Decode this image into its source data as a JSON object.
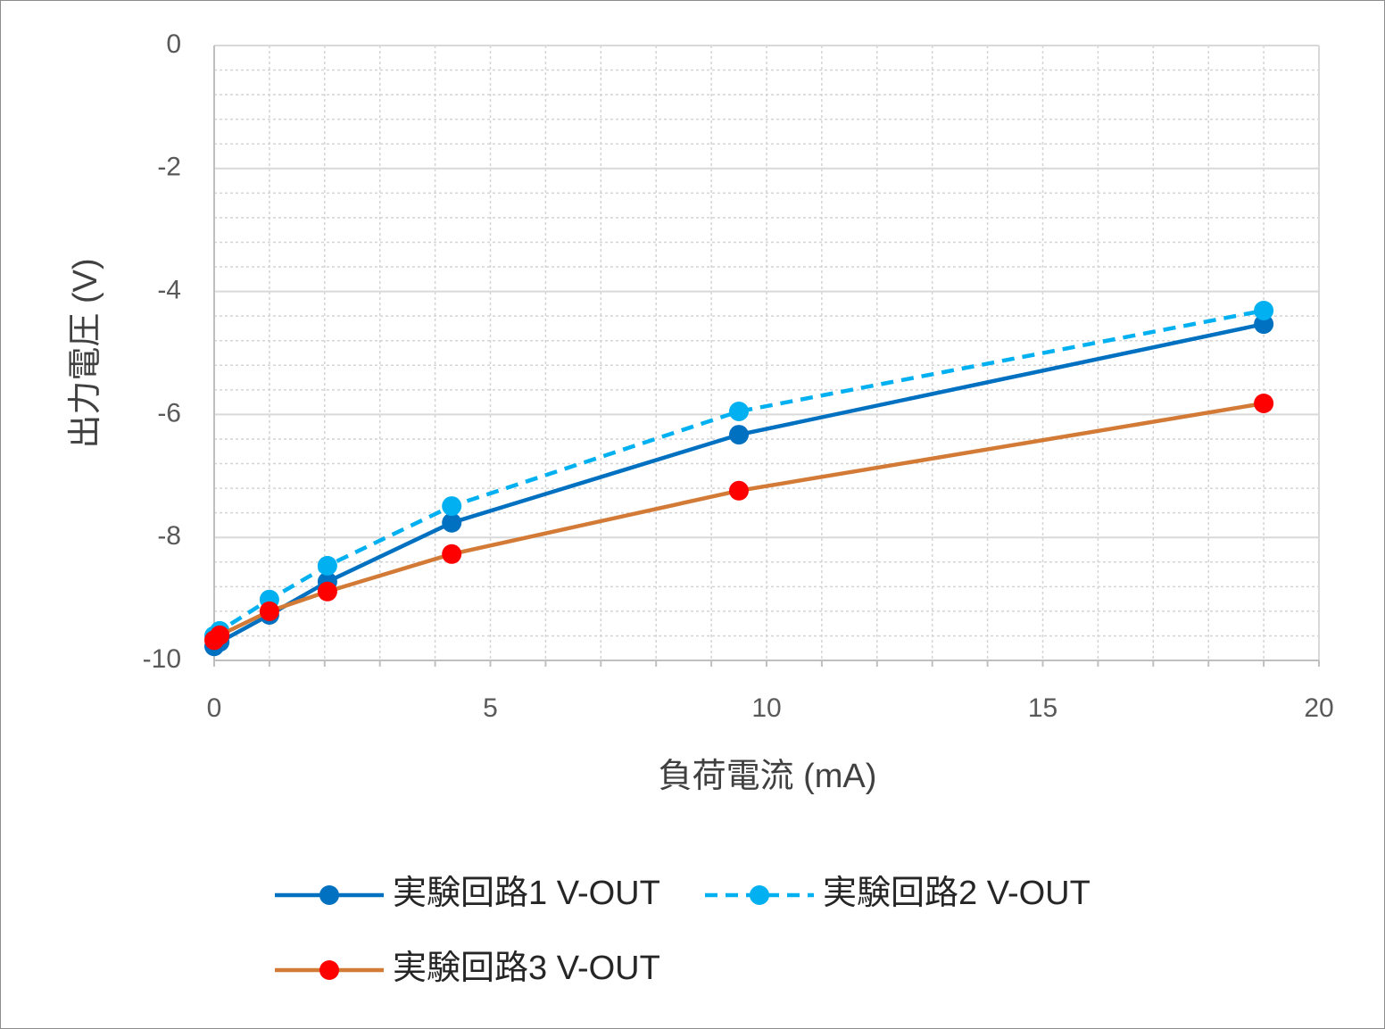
{
  "chart_data": {
    "type": "line",
    "title": "",
    "xlabel": "負荷電流 (mA)",
    "ylabel": "出力電圧 (V)",
    "xlim": [
      0,
      20
    ],
    "ylim": [
      -10,
      0
    ],
    "xticks": [
      0,
      5,
      10,
      15,
      20
    ],
    "xtick_labels": [
      "0",
      "5",
      "10",
      "15",
      "20"
    ],
    "yticks": [
      0,
      -2,
      -4,
      -6,
      -8,
      -10
    ],
    "ytick_labels": [
      "0",
      "-2",
      "-4",
      "-6",
      "-8",
      "-10"
    ],
    "grid": true,
    "minor_grid": true,
    "legend_position": "bottom",
    "series": [
      {
        "name": "実験回路1 V-OUT",
        "line_color": "#0070C0",
        "marker_color": "#0070C0",
        "line_style": "solid",
        "x": [
          0,
          0.1,
          1,
          2.05,
          4.3,
          9.5,
          19
        ],
        "y": [
          -9.77,
          -9.7,
          -9.26,
          -8.72,
          -7.76,
          -6.33,
          -4.53
        ]
      },
      {
        "name": "実験回路2 V-OUT",
        "line_color": "#00B0F0",
        "marker_color": "#00B0F0",
        "line_style": "dashed",
        "x": [
          0,
          0.1,
          1,
          2.05,
          4.3,
          9.5,
          19
        ],
        "y": [
          -9.6,
          -9.52,
          -9.01,
          -8.46,
          -7.49,
          -5.95,
          -4.31
        ]
      },
      {
        "name": "実験回路3 V-OUT",
        "line_color": "#D27A36",
        "marker_color": "#FF0000",
        "line_style": "solid",
        "x": [
          0,
          0.1,
          1,
          2.05,
          4.3,
          9.5,
          19
        ],
        "y": [
          -9.67,
          -9.59,
          -9.2,
          -8.88,
          -8.27,
          -7.24,
          -5.82
        ]
      }
    ]
  }
}
